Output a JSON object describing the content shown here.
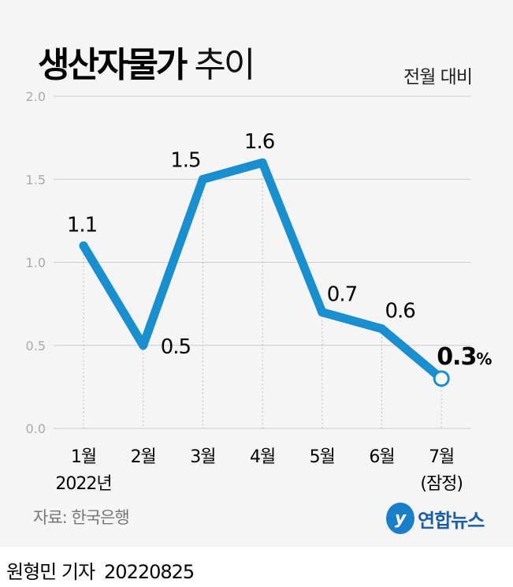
{
  "title_bold": "생산자물가",
  "title_light": "추이",
  "unit": "전월 대비",
  "source": "자료: 한국은행",
  "logo": "연합뉴스",
  "reporter": "원형민 기자",
  "date": "20220825",
  "colors": {
    "line": "#1a8fd0",
    "grid": "#cccccc",
    "background": "#f5f5f5"
  },
  "chart_data": {
    "type": "line",
    "categories": [
      "1월",
      "2월",
      "3월",
      "4월",
      "5월",
      "6월",
      "7월"
    ],
    "category_sublabels": [
      "2022년",
      "",
      "",
      "",
      "",
      "",
      "(잠정)"
    ],
    "values": [
      1.1,
      0.5,
      1.5,
      1.6,
      0.7,
      0.6,
      0.3
    ],
    "data_labels": [
      "1.1",
      "0.5",
      "1.5",
      "1.6",
      "0.7",
      "0.6",
      "0.3"
    ],
    "last_label_suffix": "%",
    "ylim": [
      0,
      2.0
    ],
    "yticks": [
      "0.0",
      "0.5",
      "1.0",
      "1.5",
      "2.0"
    ],
    "grid": true,
    "title": "생산자물가 추이"
  }
}
